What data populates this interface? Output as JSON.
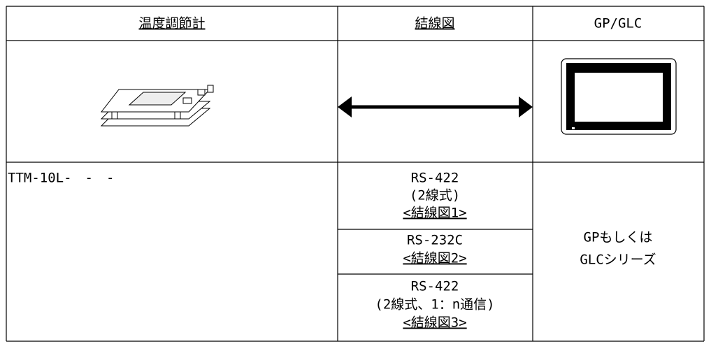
{
  "header": [
    "温度調節計",
    "結線図",
    "GP/GLC"
  ],
  "model": "TTM-10L-　-　-",
  "connections": [
    [
      "RS-422",
      "(2線式)",
      "<結線図1>"
    ],
    [
      "RS-232C",
      "<結線図2>"
    ],
    [
      "RS-422",
      "(2線式、1：n通信)",
      "<結線図3>"
    ]
  ],
  "target": [
    "GPもしくは",
    "GLCシリーズ"
  ]
}
